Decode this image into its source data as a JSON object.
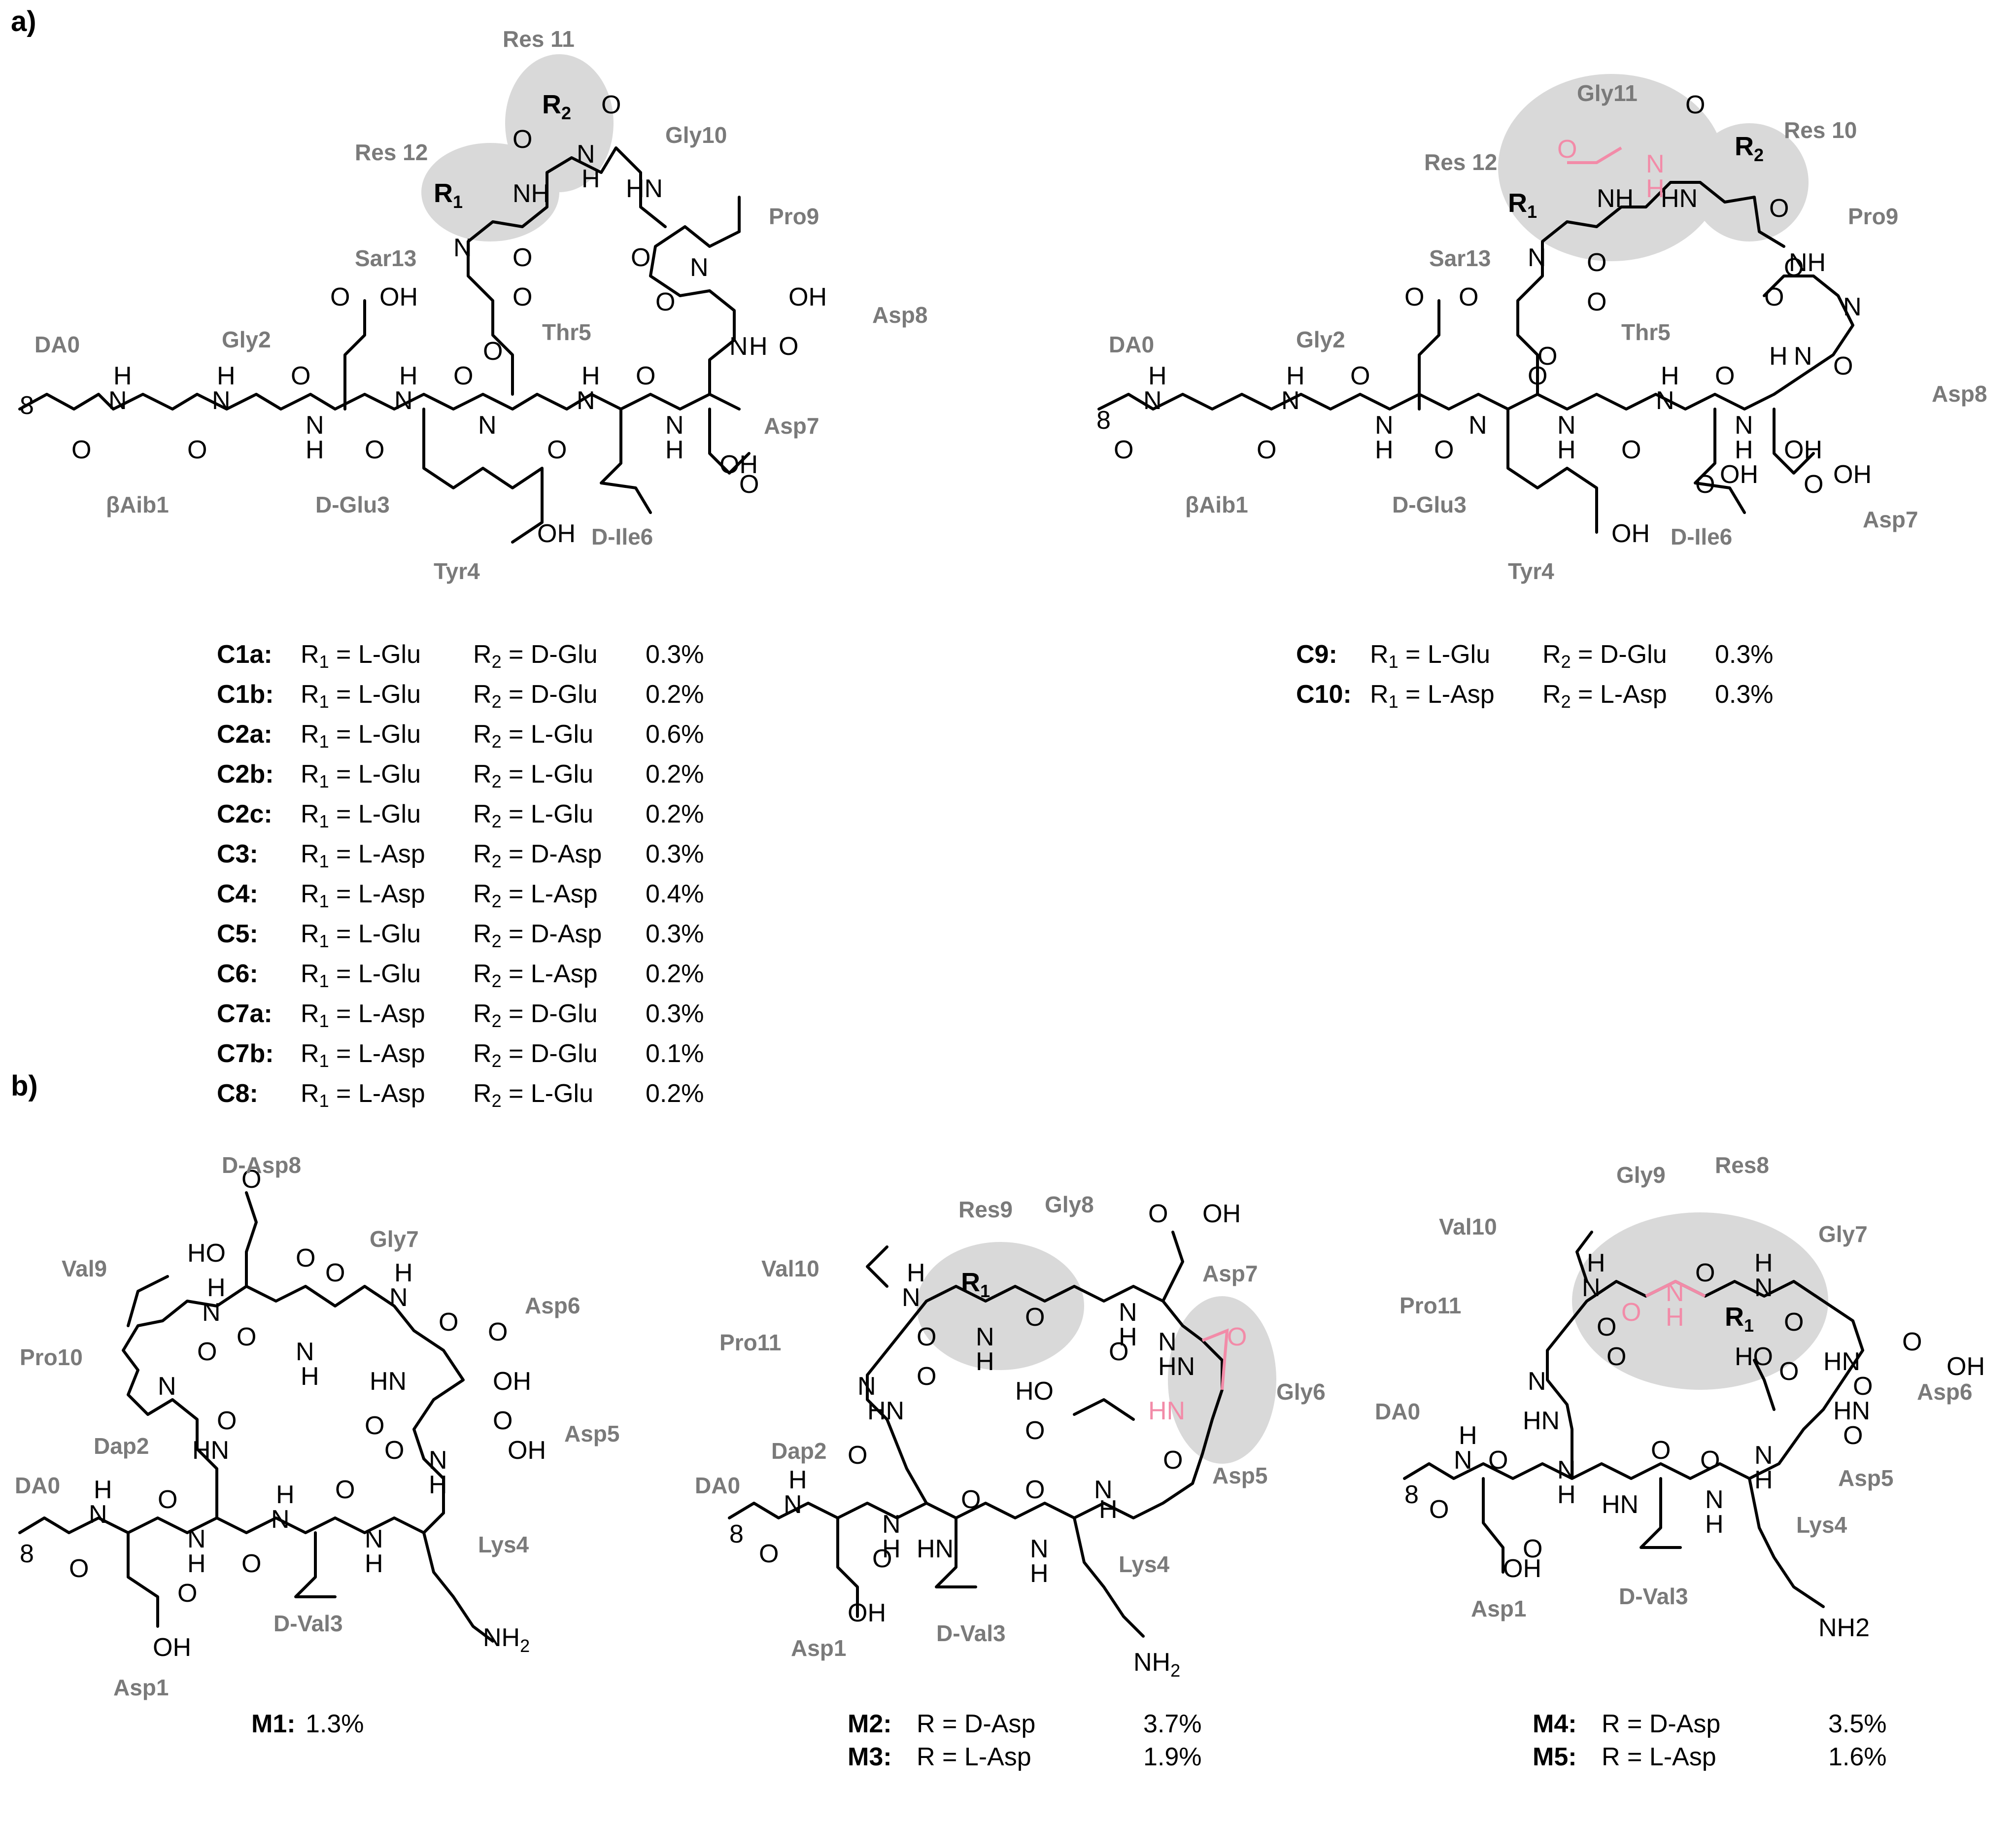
{
  "panels": {
    "a": "a)",
    "b": "b)"
  },
  "structure_a1": {
    "residues": [
      "Res 11",
      "Res 12",
      "Gly10",
      "Pro9",
      "Sar13",
      "Asp8",
      "DA0",
      "Gly2",
      "Thr5",
      "Asp7",
      "βAib1",
      "D-Glu3",
      "D-Ile6",
      "Tyr4"
    ],
    "highlight_color": "#d9d9d9"
  },
  "structure_a2": {
    "residues": [
      "Gly11",
      "Res 10",
      "Res 12",
      "Pro9",
      "Sar13",
      "DA0",
      "Gly2",
      "Thr5",
      "Asp8",
      "βAib1",
      "D-Glu3",
      "D-Ile6",
      "Asp7",
      "Tyr4"
    ],
    "highlight_color": "#d9d9d9",
    "accent_color": "#f28ba8"
  },
  "table_a1": [
    {
      "id": "C1a:",
      "r1": "L-Glu",
      "r2": "D-Glu",
      "pct": "0.3%"
    },
    {
      "id": "C1b:",
      "r1": "L-Glu",
      "r2": "D-Glu",
      "pct": "0.2%"
    },
    {
      "id": "C2a:",
      "r1": "L-Glu",
      "r2": "L-Glu",
      "pct": "0.6%"
    },
    {
      "id": "C2b:",
      "r1": "L-Glu",
      "r2": "L-Glu",
      "pct": "0.2%"
    },
    {
      "id": "C2c:",
      "r1": "L-Glu",
      "r2": "L-Glu",
      "pct": "0.2%"
    },
    {
      "id": "C3:",
      "r1": "L-Asp",
      "r2": "D-Asp",
      "pct": "0.3%"
    },
    {
      "id": "C4:",
      "r1": "L-Asp",
      "r2": "L-Asp",
      "pct": "0.4%"
    },
    {
      "id": "C5:",
      "r1": "L-Glu",
      "r2": "D-Asp",
      "pct": "0.3%"
    },
    {
      "id": "C6:",
      "r1": "L-Glu",
      "r2": "L-Asp",
      "pct": "0.2%"
    },
    {
      "id": "C7a:",
      "r1": "L-Asp",
      "r2": "D-Glu",
      "pct": "0.3%"
    },
    {
      "id": "C7b:",
      "r1": "L-Asp",
      "r2": "D-Glu",
      "pct": "0.1%"
    },
    {
      "id": "C8:",
      "r1": "L-Asp",
      "r2": "L-Glu",
      "pct": "0.2%"
    }
  ],
  "table_a2": [
    {
      "id": "C9:",
      "r1": "L-Glu",
      "r2": "D-Glu",
      "pct": "0.3%"
    },
    {
      "id": "C10:",
      "r1": "L-Asp",
      "r2": "L-Asp",
      "pct": "0.3%"
    }
  ],
  "r1_prefix": "R",
  "r1_sub": "1",
  "r2_sub": "2",
  "eq": " = ",
  "structure_b1": {
    "residues": [
      "D-Asp8",
      "Gly7",
      "Val9",
      "Asp6",
      "Pro10",
      "Dap2",
      "Asp5",
      "DA0",
      "Lys4",
      "D-Val3",
      "Asp1"
    ],
    "caption_id": "M1:",
    "caption_pct": "1.3%"
  },
  "structure_b2": {
    "residues": [
      "Res9",
      "Gly8",
      "Val10",
      "Asp7",
      "Pro11",
      "Gly6",
      "Dap2",
      "DA0",
      "Asp5",
      "Lys4",
      "D-Val3",
      "Asp1"
    ],
    "captions": [
      {
        "id": "M2:",
        "text": "R = D-Asp",
        "pct": "3.7%"
      },
      {
        "id": "M3:",
        "text": "R = L-Asp",
        "pct": "1.9%"
      }
    ]
  },
  "structure_b3": {
    "residues": [
      "Res8",
      "Gly9",
      "Val10",
      "Gly7",
      "Pro11",
      "Asp6",
      "DA0",
      "Asp5",
      "Lys4",
      "Asp1",
      "D-Val3"
    ],
    "captions": [
      {
        "id": "M4:",
        "text": "R = D-Asp",
        "pct": "3.5%"
      },
      {
        "id": "M5:",
        "text": "R = L-Asp",
        "pct": "1.6%"
      }
    ]
  }
}
